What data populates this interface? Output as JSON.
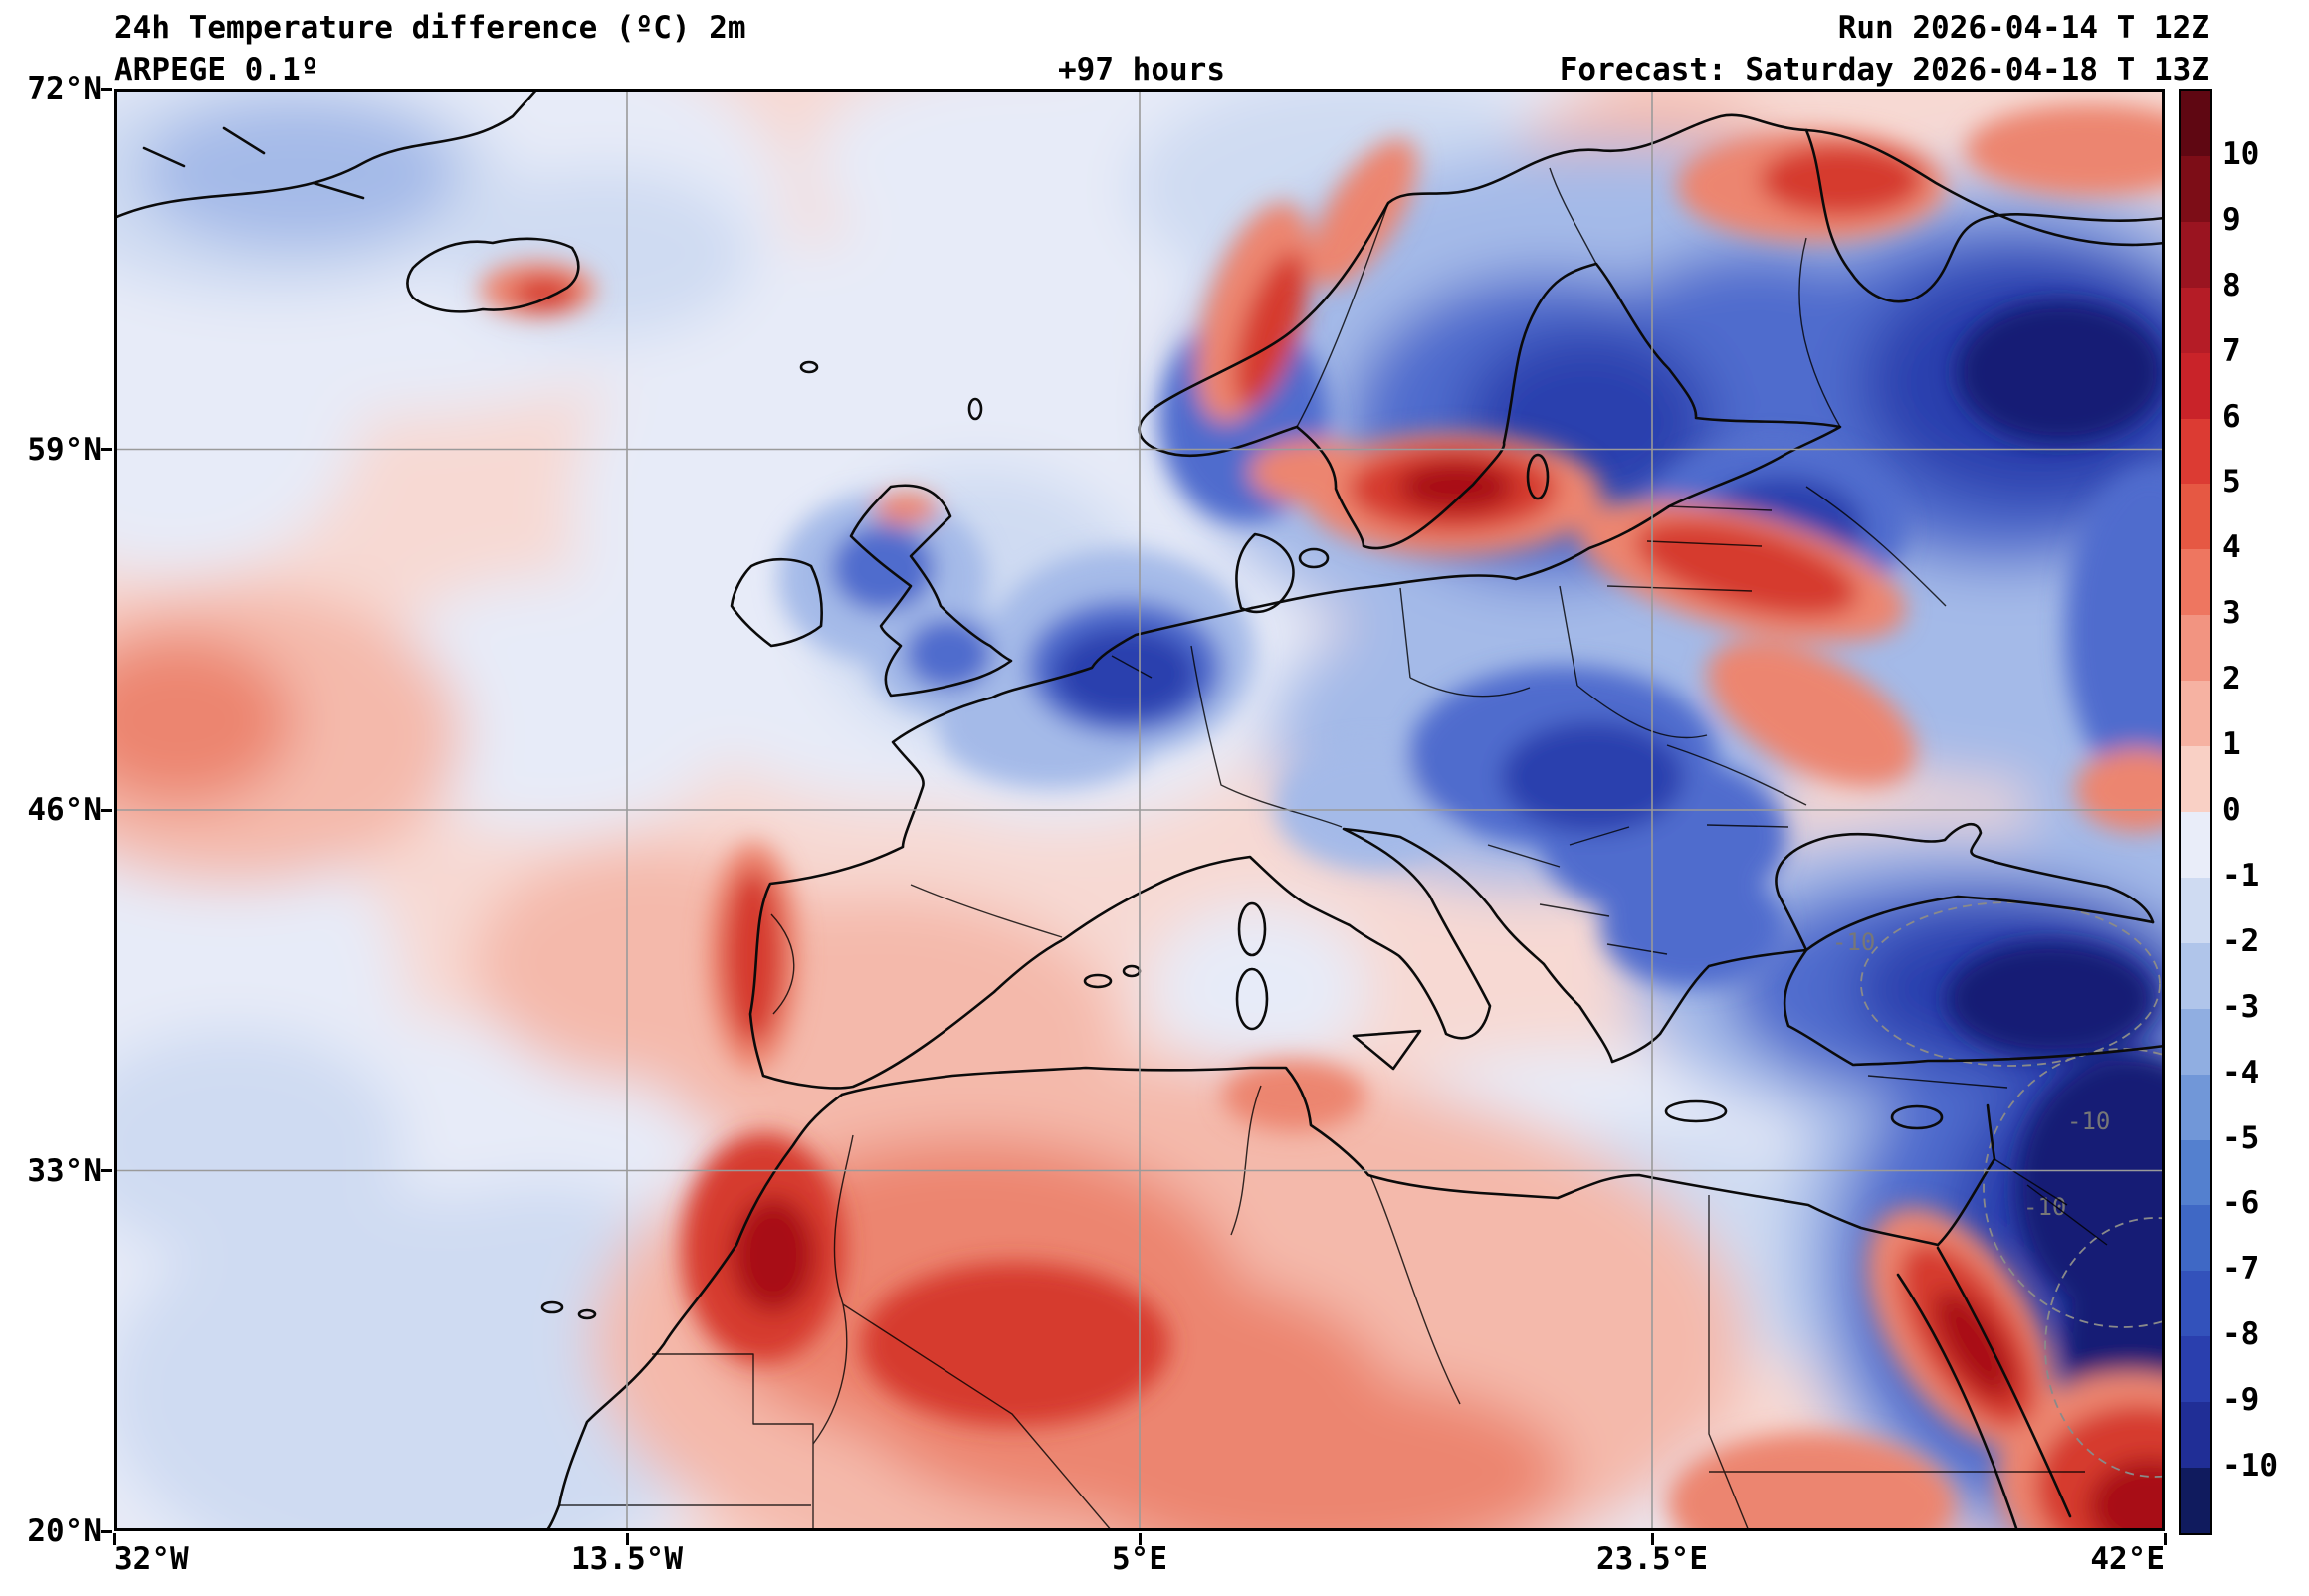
{
  "header": {
    "title": "24h Temperature difference (ºC) 2m",
    "model": "ARPEGE 0.1º",
    "lead_time": "+97 hours",
    "run": "Run 2026-04-14 T 12Z",
    "forecast": "Forecast: Saturday 2026-04-18 T 13Z"
  },
  "axes": {
    "lat_ticks": [
      "72°N",
      "59°N",
      "46°N",
      "33°N",
      "20°N"
    ],
    "lon_ticks": [
      "32°W",
      "13.5°W",
      "5°E",
      "23.5°E",
      "42°E"
    ]
  },
  "colorbar": {
    "tick_labels": [
      "10",
      "9",
      "8",
      "7",
      "6",
      "5",
      "4",
      "3",
      "2",
      "1",
      "0",
      "-1",
      "-2",
      "-3",
      "-4",
      "-5",
      "-6",
      "-7",
      "-8",
      "-9",
      "-10"
    ],
    "colors_top_to_bottom": [
      "#5f0712",
      "#7d0d17",
      "#9a1420",
      "#b51c26",
      "#c92329",
      "#dc3b33",
      "#e65843",
      "#ee7660",
      "#f29481",
      "#f6b2a2",
      "#f9d0c5",
      "#e9edf9",
      "#cfdbf2",
      "#b0c5ea",
      "#90aee1",
      "#7197d8",
      "#5480cf",
      "#3f68c5",
      "#3352bb",
      "#2a3fae",
      "#202e96",
      "#101b5e"
    ]
  },
  "map": {
    "contour_labels": [
      "-10",
      "-10",
      "-10"
    ],
    "field_summary": [
      {
        "region": "Scandinavia and Baltic",
        "anomaly_c": "-3 to -8"
      },
      {
        "region": "NE Europe / NW Russia",
        "anomaly_c": "-5 to -10"
      },
      {
        "region": "Southern Baltic coast (N Poland)",
        "anomaly_c": "+5 to +8"
      },
      {
        "region": "Belarus / Ukraine band",
        "anomaly_c": "+3 to +6"
      },
      {
        "region": "Norwegian coastal strip",
        "anomaly_c": "+2 to +5"
      },
      {
        "region": "North Sea / Benelux",
        "anomaly_c": "-5 to -8"
      },
      {
        "region": "Central Europe",
        "anomaly_c": "-2 to -6"
      },
      {
        "region": "Turkey / Anatolia",
        "anomaly_c": "-8 to below -10"
      },
      {
        "region": "Middle East (lower right)",
        "anomaly_c": "-6 to below -10"
      },
      {
        "region": "Egypt / Red Sea / Arabia patches",
        "anomaly_c": "+4 to +10"
      },
      {
        "region": "North Africa interior",
        "anomaly_c": "+1 to +6"
      },
      {
        "region": "Morocco Atlas core",
        "anomaly_c": "+5 to +9"
      },
      {
        "region": "West Iberia strip",
        "anomaly_c": "+3 to +6"
      },
      {
        "region": "British Isles",
        "anomaly_c": "-2 to -6 with small warm spots"
      },
      {
        "region": "North Atlantic",
        "anomaly_c": "-1 to +1"
      },
      {
        "region": "Left-edge mid-Atlantic blob",
        "anomaly_c": "+1 to +3"
      },
      {
        "region": "Iceland",
        "anomaly_c": "0 to +4 spots"
      }
    ]
  },
  "chart_data": {
    "type": "heatmap",
    "title": "24h Temperature difference (ºC) 2m",
    "x_range_lon": [
      -32,
      42
    ],
    "y_range_lat": [
      20,
      72
    ],
    "xlabel": "longitude",
    "ylabel": "latitude",
    "colorbar_ticks": [
      10,
      9,
      8,
      7,
      6,
      5,
      4,
      3,
      2,
      1,
      0,
      -1,
      -2,
      -3,
      -4,
      -5,
      -6,
      -7,
      -8,
      -9,
      -10
    ],
    "units": "ºC",
    "grid": true
  }
}
